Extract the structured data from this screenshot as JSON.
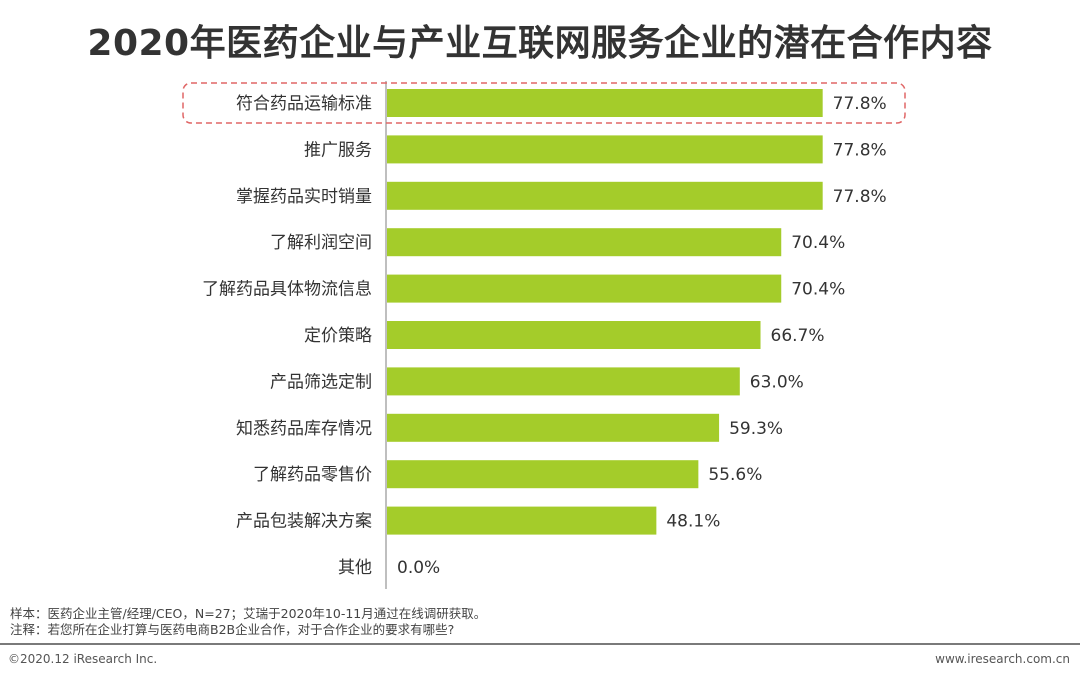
{
  "title": "2020年医药企业与产业互联网服务企业的潜在合作内容",
  "chart_data": {
    "type": "bar",
    "orientation": "horizontal",
    "categories": [
      "符合药品运输标准",
      "推广服务",
      "掌握药品实时销量",
      "了解利润空间",
      "了解药品具体物流信息",
      "定价策略",
      "产品筛选定制",
      "知悉药品库存情况",
      "了解药品零售价",
      "产品包装解决方案",
      "其他"
    ],
    "values": [
      77.8,
      77.8,
      77.8,
      70.4,
      70.4,
      66.7,
      63.0,
      59.3,
      55.6,
      48.1,
      0.0
    ],
    "value_labels": [
      "77.8%",
      "77.8%",
      "77.8%",
      "70.4%",
      "70.4%",
      "66.7%",
      "63.0%",
      "59.3%",
      "55.6%",
      "48.1%",
      "0.0%"
    ],
    "highlighted_category": "符合药品运输标准",
    "bar_color": "#a4cc2a",
    "highlight_color": "#e06666",
    "xlim": [
      0,
      100
    ],
    "grid": false,
    "legend": "none"
  },
  "notes": {
    "sample": "样本：医药企业主管/经理/CEO，N=27；艾瑞于2020年10-11月通过在线调研获取。",
    "note": "注释：若您所在企业打算与医药电商B2B企业合作，对于合作企业的要求有哪些?"
  },
  "footer": {
    "copyright": "©2020.12 iResearch Inc.",
    "website": "www.iresearch.com.cn"
  }
}
